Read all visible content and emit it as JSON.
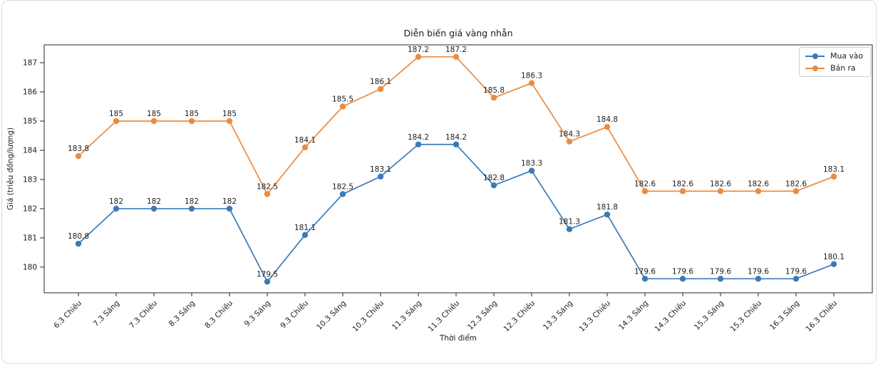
{
  "chart_data": {
    "type": "line",
    "title": "Diễn biến giá vàng nhẫn",
    "xlabel": "Thời điểm",
    "ylabel": "Giá (triệu đồng/lượng)",
    "categories": [
      "6.3 Chiều",
      "7.3 Sáng",
      "7.3 Chiều",
      "8.3 Sáng",
      "8.3 Chiều",
      "9.3 Sáng",
      "9.3 Chiều",
      "10.3 Sáng",
      "10.3 Chiều",
      "11.3 Sáng",
      "11.3 Chiều",
      "12.3 Sáng",
      "12.3 Chiều",
      "13.3 Sáng",
      "13.3 Chiều",
      "14.3 Sáng",
      "14.3 Chiều",
      "15.3 Sáng",
      "15.3 Chiều",
      "16.3 Sáng",
      "16.3 Chiều"
    ],
    "series": [
      {
        "name": "Mua vào",
        "color": "#3c7ab7",
        "values": [
          180.8,
          182,
          182,
          182,
          182,
          179.5,
          181.1,
          182.5,
          183.1,
          184.2,
          184.2,
          182.8,
          183.3,
          181.3,
          181.8,
          179.6,
          179.6,
          179.6,
          179.6,
          179.6,
          180.1
        ]
      },
      {
        "name": "Bán ra",
        "color": "#ec8b3e",
        "values": [
          183.8,
          185,
          185,
          185,
          185,
          182.5,
          184.1,
          185.5,
          186.1,
          187.2,
          187.2,
          185.8,
          186.3,
          184.3,
          184.8,
          182.6,
          182.6,
          182.6,
          182.6,
          182.6,
          183.1
        ]
      }
    ],
    "yticks": [
      180,
      181,
      182,
      183,
      184,
      185,
      186,
      187
    ],
    "ylim": [
      179.12,
      187.61
    ],
    "grid": false,
    "legend_position": "top-right",
    "data_labels": true,
    "marker": "circle",
    "axis_color": "#262626",
    "text_color": "#1c1c1c"
  }
}
